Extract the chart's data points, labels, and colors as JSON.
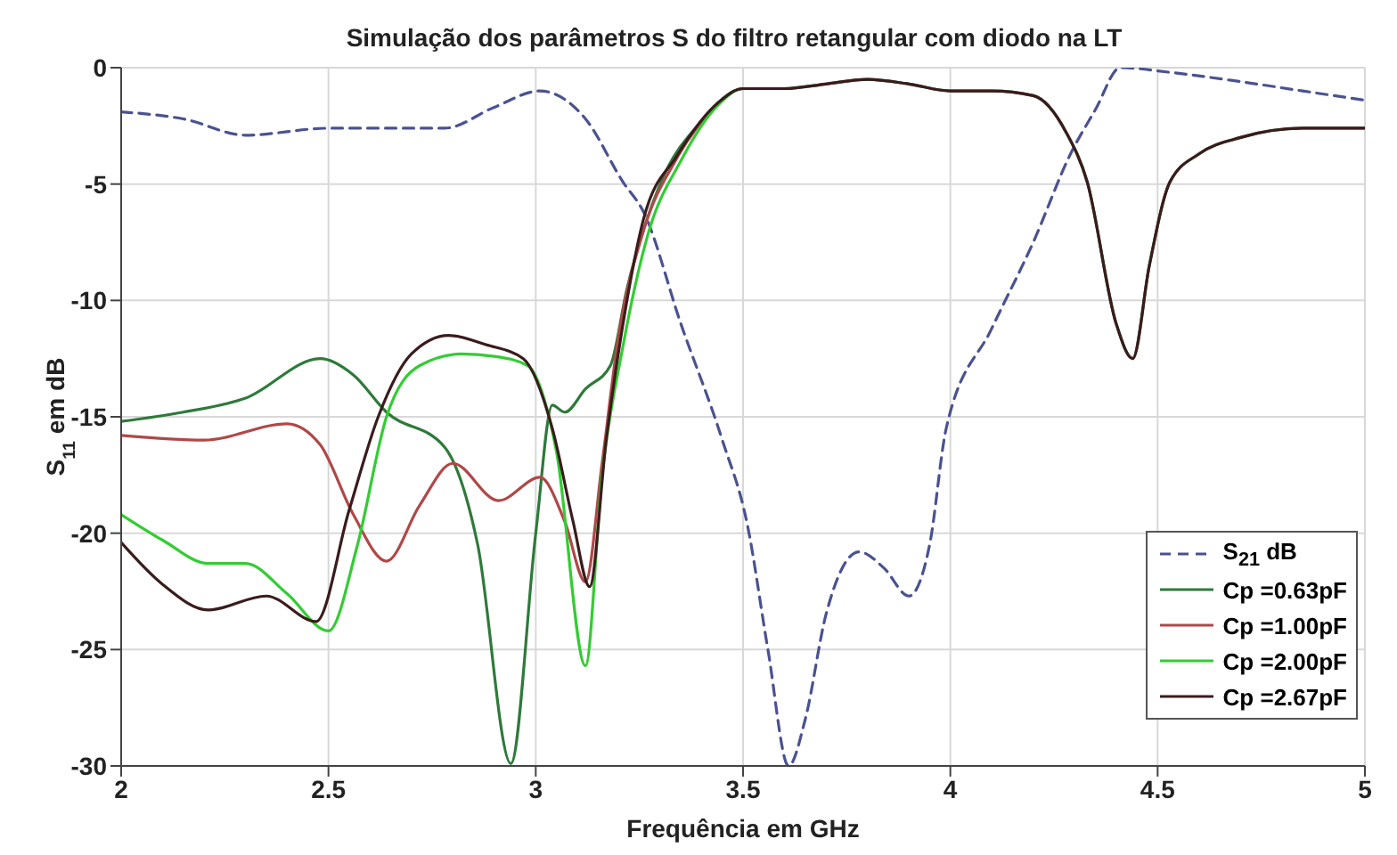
{
  "chart_data": {
    "type": "line",
    "title": "Simulação dos parâmetros S do filtro retangular com diodo na LT",
    "xlabel": "Frequência em GHz",
    "ylabel": "S$_{11}$ em dB",
    "xlim": [
      2,
      5
    ],
    "xticks": [
      2,
      2.5,
      3,
      3.5,
      4,
      4.5,
      5
    ],
    "ylim": [
      -30,
      0
    ],
    "yticks": [
      -30,
      -25,
      -20,
      -15,
      -10,
      -5,
      0
    ],
    "grid": true,
    "legend": "bottom right",
    "marker": "none",
    "series": [
      {
        "name": "S$_{21}$ dB",
        "color": "#4a5290",
        "line_style": "dashed",
        "x": [
          2,
          2.15,
          2.3,
          2.5,
          2.65,
          2.78,
          2.9,
          3.01,
          3.12,
          3.21,
          3.26,
          3.35,
          3.45,
          3.51,
          3.56,
          3.61,
          3.65,
          3.7,
          3.78,
          3.84,
          3.9,
          3.95,
          3.99,
          4.1,
          4.2,
          4.29,
          4.35,
          4.41,
          4.53,
          4.7,
          4.85,
          5
        ],
        "values": [
          -1.9,
          -2.2,
          -2.9,
          -2.6,
          -2.6,
          -2.6,
          -1.7,
          -1.0,
          -2.2,
          -4.9,
          -6.2,
          -11,
          -16,
          -19.6,
          -25,
          -30,
          -28,
          -23.5,
          -20.8,
          -21.5,
          -22.7,
          -20.5,
          -15.5,
          -11.2,
          -7.5,
          -3.7,
          -1.8,
          0,
          -0.2,
          -0.6,
          -1.0,
          -1.4
        ]
      },
      {
        "name": "Cp =0.63pF",
        "color": "#2e7a3a",
        "line_style": "solid",
        "x": [
          2,
          2.15,
          2.3,
          2.48,
          2.56,
          2.64,
          2.78,
          2.86,
          2.94,
          3.0,
          3.04,
          3.07,
          3.12,
          3.18,
          3.22,
          3.3,
          3.4,
          3.5,
          3.6,
          3.7,
          3.8,
          3.9,
          4.0,
          4.1,
          4.2,
          4.28,
          4.33,
          4.4,
          4.44,
          4.48,
          4.53,
          4.6,
          4.7,
          4.85,
          5
        ],
        "values": [
          -15.2,
          -14.8,
          -14.2,
          -12.5,
          -13.2,
          -14.8,
          -16.3,
          -20.5,
          -29.9,
          -20,
          -14.5,
          -14.8,
          -13.8,
          -12.8,
          -9.5,
          -5.0,
          -2.3,
          -0.9,
          -0.9,
          -0.7,
          -0.5,
          -0.7,
          -1.0,
          -1.0,
          -1.2,
          -2.8,
          -4.9,
          -11,
          -12.5,
          -8.5,
          -4.9,
          -3.7,
          -3.0,
          -2.6,
          -2.6
        ]
      },
      {
        "name": "Cp =1.00pF",
        "color": "#b04848",
        "line_style": "solid",
        "x": [
          2,
          2.2,
          2.4,
          2.48,
          2.56,
          2.64,
          2.72,
          2.8,
          2.91,
          3.01,
          3.07,
          3.12,
          3.16,
          3.2,
          3.26,
          3.34,
          3.44
        ],
        "values": [
          -15.8,
          -16.0,
          -15.3,
          -16.2,
          -19.2,
          -21.2,
          -18.8,
          -17.0,
          -18.6,
          -17.6,
          -19.5,
          -22.1,
          -17,
          -11.5,
          -7,
          -3.9,
          -1.5
        ]
      },
      {
        "name": "Cp =2.00pF",
        "color": "#33cc33",
        "line_style": "solid",
        "x": [
          2,
          2.1,
          2.21,
          2.3,
          2.4,
          2.5,
          2.57,
          2.64,
          2.72,
          2.82,
          2.9,
          2.98,
          3.05,
          3.12,
          3.16,
          3.21,
          3.27,
          3.35,
          3.44,
          3.5,
          3.6
        ],
        "values": [
          -19.2,
          -20.3,
          -21.3,
          -21.3,
          -22.6,
          -24.2,
          -20.5,
          -15,
          -12.8,
          -12.3,
          -12.4,
          -12.8,
          -16.5,
          -25.7,
          -17.5,
          -12,
          -7.2,
          -4.0,
          -1.6,
          -0.9,
          -0.9
        ]
      },
      {
        "name": "Cp =2.67pF",
        "color": "#3a1c1c",
        "line_style": "solid",
        "x": [
          2,
          2.1,
          2.21,
          2.35,
          2.47,
          2.55,
          2.62,
          2.7,
          2.79,
          2.88,
          2.97,
          3.04,
          3.09,
          3.13,
          3.17,
          3.22,
          3.26,
          3.34,
          3.44,
          3.5,
          3.6,
          3.7,
          3.8,
          3.9,
          4.0,
          4.1,
          4.2,
          4.28,
          4.33,
          4.4,
          4.44,
          4.48,
          4.53,
          4.6,
          4.7,
          4.85,
          5
        ],
        "values": [
          -20.4,
          -22.2,
          -23.3,
          -22.7,
          -23.8,
          -19,
          -15,
          -12.3,
          -11.5,
          -11.9,
          -12.5,
          -15.5,
          -19.5,
          -22.3,
          -16,
          -10,
          -6.5,
          -3.8,
          -1.5,
          -0.9,
          -0.9,
          -0.7,
          -0.5,
          -0.7,
          -1.0,
          -1.0,
          -1.2,
          -2.8,
          -4.9,
          -11,
          -12.5,
          -8.5,
          -4.9,
          -3.7,
          -3.0,
          -2.6,
          -2.6
        ]
      }
    ]
  }
}
